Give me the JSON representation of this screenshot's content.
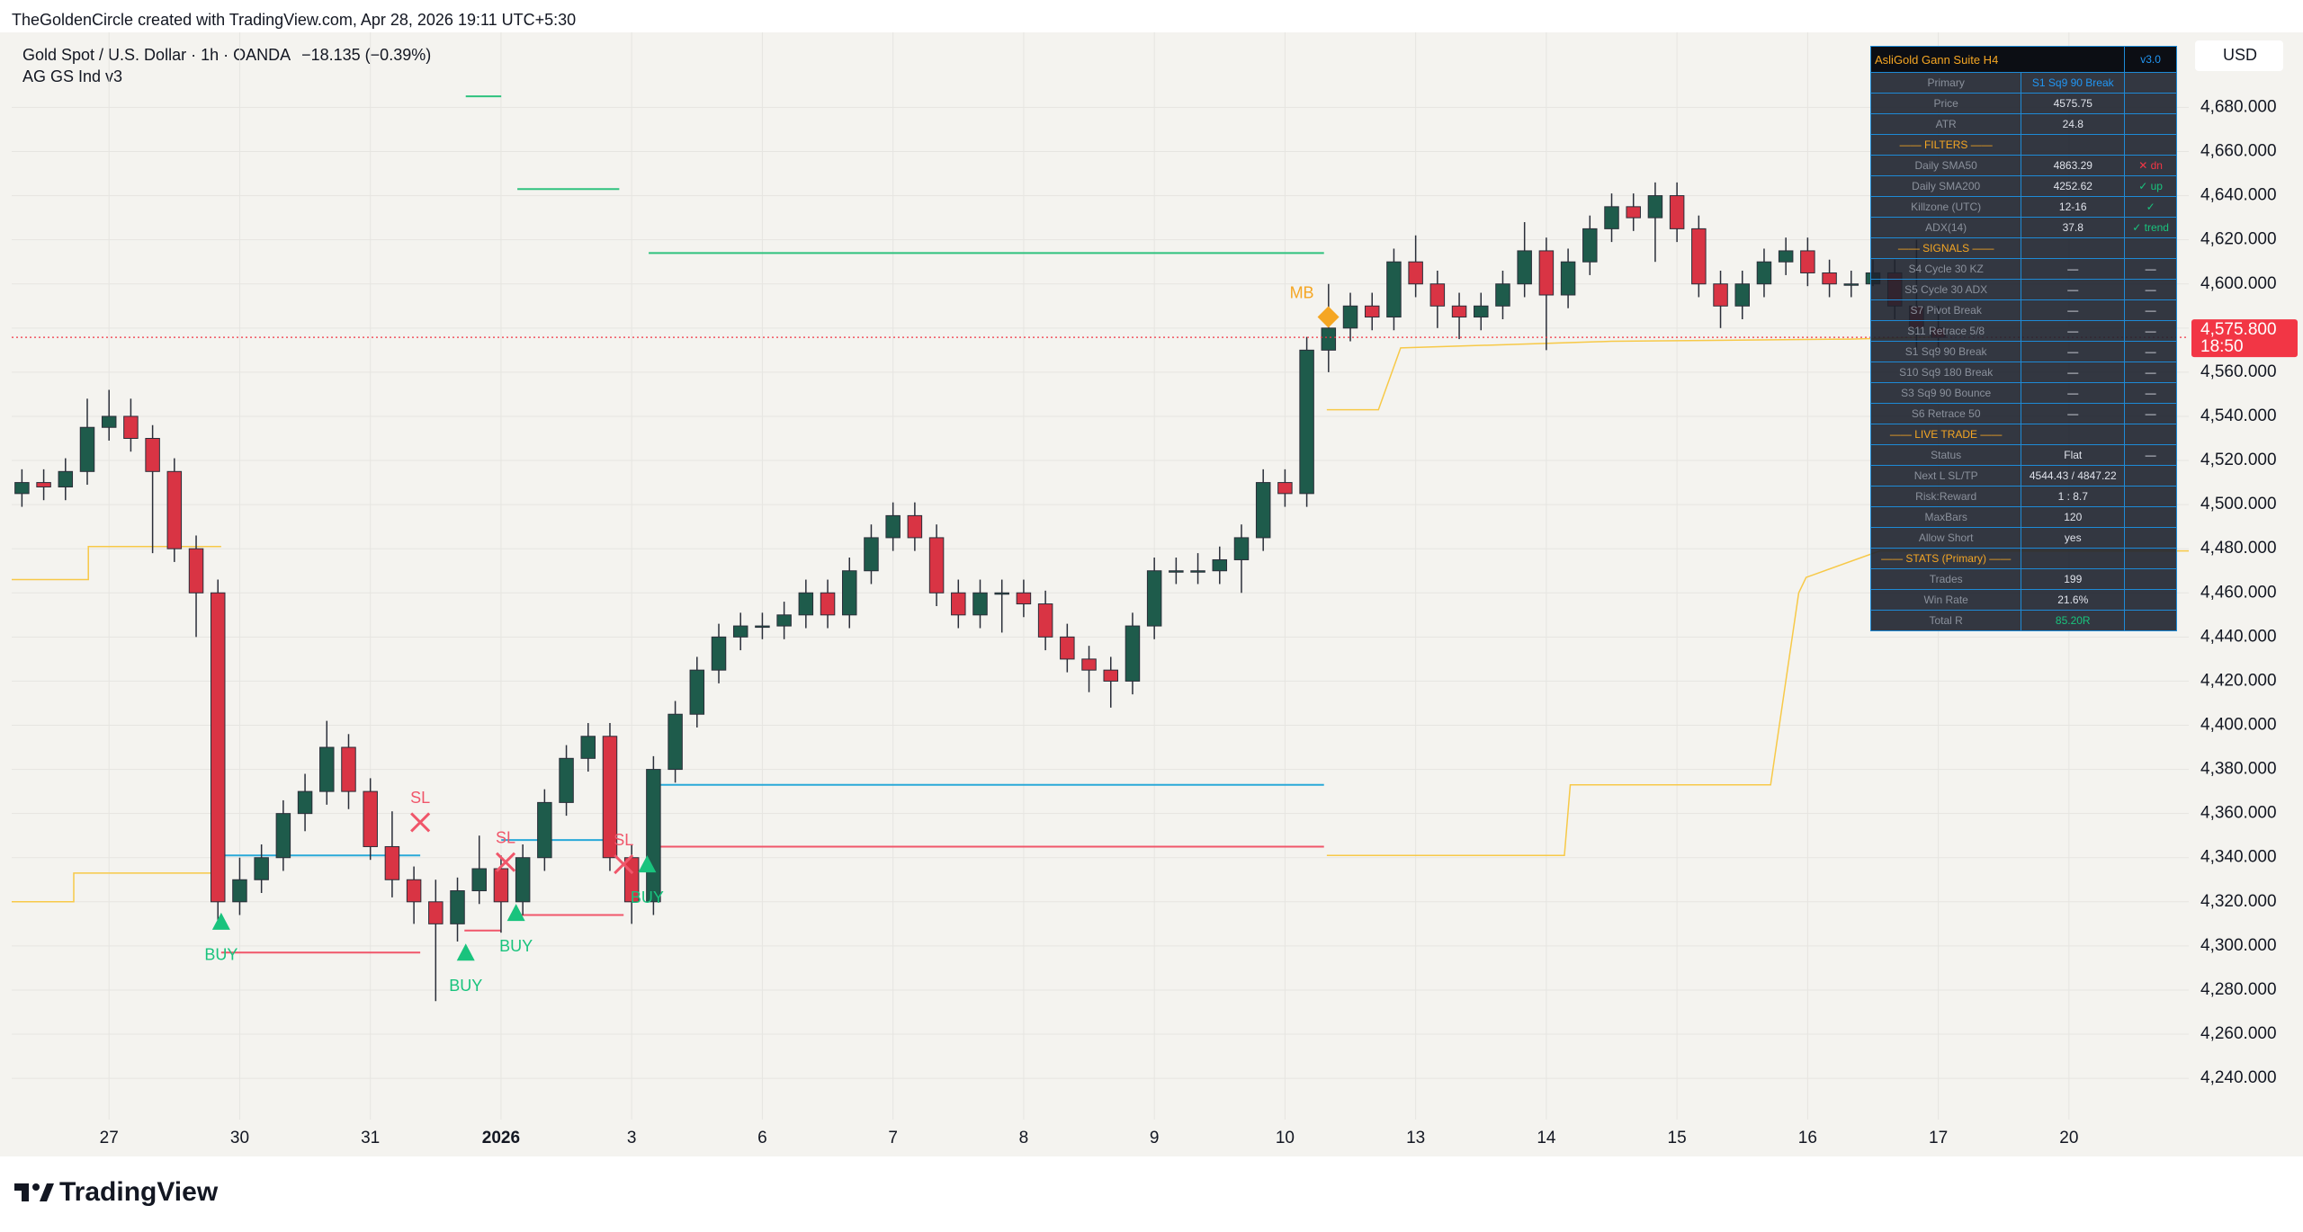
{
  "header": {
    "attribution": "TheGoldenCircle created with TradingView.com, Apr 28, 2026 19:11 UTC+5:30",
    "symbol": "Gold Spot / U.S. Dollar · 1h · OANDA",
    "change": "−18.135 (−0.39%)",
    "indicator": "AG GS Ind v3",
    "currency": "USD",
    "brand": "TradingView"
  },
  "chart_data": {
    "type": "candlestick",
    "up_color": "#1e5b4b",
    "down_color": "#d93444",
    "grid": true,
    "x": [
      -4,
      -3,
      -2,
      -1,
      0,
      1,
      2,
      3,
      4,
      5,
      6,
      7,
      8,
      9,
      10,
      11,
      12,
      13,
      14,
      15,
      16,
      17,
      18,
      19,
      20,
      21,
      22,
      23,
      24,
      25,
      26,
      27,
      28,
      29,
      30,
      31,
      32,
      33,
      34,
      35,
      36,
      37,
      38,
      39,
      40,
      41,
      42,
      43,
      44,
      45,
      46,
      47,
      48,
      49,
      50,
      51,
      52,
      53,
      54,
      55,
      56,
      57,
      58,
      59,
      60,
      61,
      62,
      63,
      64,
      65,
      66,
      67,
      68,
      69,
      70,
      71,
      72,
      73,
      74,
      75,
      76,
      77,
      78,
      79,
      80,
      81,
      82,
      83,
      84
    ],
    "open": [
      4505,
      4510,
      4508,
      4515,
      4535,
      4540,
      4530,
      4515,
      4480,
      4460,
      4320,
      4330,
      4340,
      4360,
      4370,
      4390,
      4370,
      4345,
      4330,
      4320,
      4310,
      4325,
      4335,
      4320,
      4340,
      4365,
      4385,
      4395,
      4340,
      4320,
      4380,
      4405,
      4425,
      4440,
      4445,
      4445,
      4450,
      4460,
      4450,
      4470,
      4485,
      4495,
      4485,
      4460,
      4450,
      4460,
      4460,
      4455,
      4440,
      4430,
      4425,
      4420,
      4445,
      4470,
      4470,
      4470,
      4475,
      4485,
      4510,
      4505,
      4570,
      4580,
      4590,
      4585,
      4610,
      4600,
      4590,
      4585,
      4590,
      4600,
      4615,
      4595,
      4610,
      4625,
      4635,
      4630,
      4640,
      4625,
      4600,
      4590,
      4600,
      4610,
      4615,
      4605,
      4600,
      4600,
      4605,
      4590,
      4580
    ],
    "high": [
      4516,
      4516,
      4521,
      4548,
      4552,
      4548,
      4536,
      4521,
      4486,
      4466,
      4340,
      4346,
      4366,
      4378,
      4402,
      4396,
      4376,
      4361,
      4336,
      4330,
      4331,
      4350,
      4341,
      4346,
      4371,
      4391,
      4401,
      4401,
      4346,
      4386,
      4411,
      4431,
      4446,
      4451,
      4451,
      4456,
      4466,
      4466,
      4476,
      4491,
      4501,
      4501,
      4491,
      4466,
      4466,
      4466,
      4466,
      4461,
      4446,
      4436,
      4431,
      4451,
      4476,
      4476,
      4478,
      4481,
      4491,
      4516,
      4516,
      4576,
      4600,
      4596,
      4596,
      4616,
      4622,
      4606,
      4596,
      4596,
      4606,
      4628,
      4621,
      4616,
      4631,
      4641,
      4641,
      4646,
      4646,
      4631,
      4606,
      4606,
      4616,
      4621,
      4621,
      4611,
      4606,
      4611,
      4611,
      4620,
      4590
    ],
    "low": [
      4499,
      4502,
      4502,
      4509,
      4529,
      4524,
      4478,
      4474,
      4440,
      4310,
      4314,
      4324,
      4334,
      4352,
      4364,
      4362,
      4339,
      4322,
      4310,
      4275,
      4302,
      4319,
      4306,
      4314,
      4334,
      4359,
      4379,
      4334,
      4310,
      4314,
      4374,
      4399,
      4419,
      4434,
      4439,
      4439,
      4444,
      4444,
      4444,
      4464,
      4479,
      4479,
      4454,
      4444,
      4444,
      4442,
      4449,
      4434,
      4424,
      4415,
      4408,
      4414,
      4439,
      4464,
      4464,
      4464,
      4460,
      4479,
      4499,
      4499,
      4560,
      4574,
      4579,
      4579,
      4594,
      4580,
      4575,
      4579,
      4584,
      4594,
      4570,
      4589,
      4604,
      4619,
      4624,
      4610,
      4619,
      4594,
      4580,
      4584,
      4594,
      4604,
      4599,
      4594,
      4594,
      4599,
      4584,
      4570,
      4568
    ],
    "close": [
      4510,
      4508,
      4515,
      4535,
      4540,
      4530,
      4515,
      4480,
      4460,
      4320,
      4330,
      4340,
      4360,
      4370,
      4390,
      4370,
      4345,
      4330,
      4320,
      4310,
      4325,
      4335,
      4320,
      4340,
      4365,
      4385,
      4395,
      4340,
      4320,
      4380,
      4405,
      4425,
      4440,
      4445,
      4445,
      4450,
      4460,
      4450,
      4470,
      4485,
      4495,
      4485,
      4460,
      4450,
      4460,
      4460,
      4455,
      4440,
      4430,
      4425,
      4420,
      4445,
      4470,
      4470,
      4470,
      4475,
      4485,
      4510,
      4505,
      4570,
      4580,
      4590,
      4585,
      4610,
      4600,
      4590,
      4585,
      4590,
      4600,
      4615,
      4595,
      4610,
      4625,
      4635,
      4630,
      4640,
      4625,
      4600,
      4590,
      4600,
      4610,
      4615,
      4605,
      4600,
      4600,
      4605,
      4590,
      4580,
      4575.8
    ],
    "xlim": [
      -4.47,
      95.5
    ],
    "xticks": [
      {
        "value": 0,
        "label": "27"
      },
      {
        "value": 6,
        "label": "30"
      },
      {
        "value": 12,
        "label": "31"
      },
      {
        "value": 18,
        "label": "2026",
        "bold": true
      },
      {
        "value": 24,
        "label": "3"
      },
      {
        "value": 30,
        "label": "6"
      },
      {
        "value": 36,
        "label": "7"
      },
      {
        "value": 42,
        "label": "8"
      },
      {
        "value": 48,
        "label": "9"
      },
      {
        "value": 54,
        "label": "10"
      },
      {
        "value": 60,
        "label": "13"
      },
      {
        "value": 66,
        "label": "14"
      },
      {
        "value": 72,
        "label": "15"
      },
      {
        "value": 78,
        "label": "16"
      },
      {
        "value": 84,
        "label": "17"
      },
      {
        "value": 90,
        "label": "20"
      }
    ],
    "ylim": [
      4205,
      4714
    ],
    "yticks": [
      {
        "value": 4240,
        "label": "4,240.000"
      },
      {
        "value": 4260,
        "label": "4,260.000"
      },
      {
        "value": 4280,
        "label": "4,280.000"
      },
      {
        "value": 4300,
        "label": "4,300.000"
      },
      {
        "value": 4320,
        "label": "4,320.000"
      },
      {
        "value": 4340,
        "label": "4,340.000"
      },
      {
        "value": 4360,
        "label": "4,360.000"
      },
      {
        "value": 4380,
        "label": "4,380.000"
      },
      {
        "value": 4400,
        "label": "4,400.000"
      },
      {
        "value": 4420,
        "label": "4,420.000"
      },
      {
        "value": 4440,
        "label": "4,440.000"
      },
      {
        "value": 4460,
        "label": "4,460.000"
      },
      {
        "value": 4480,
        "label": "4,480.000"
      },
      {
        "value": 4500,
        "label": "4,500.000"
      },
      {
        "value": 4520,
        "label": "4,520.000"
      },
      {
        "value": 4540,
        "label": "4,540.000"
      },
      {
        "value": 4560,
        "label": "4,560.000"
      },
      {
        "value": 4580,
        "label": "4,580.000"
      },
      {
        "value": 4600,
        "label": "4,600.000"
      },
      {
        "value": 4620,
        "label": "4,620.000"
      },
      {
        "value": 4640,
        "label": "4,640.000"
      },
      {
        "value": 4660,
        "label": "4,660.000"
      },
      {
        "value": 4680,
        "label": "4,680.000"
      }
    ],
    "last_price": {
      "value": 4575.8,
      "label": "4,575.800"
    },
    "countdown": "18:50",
    "last_color": "#f23645",
    "series": [
      {
        "color": "#f7c948",
        "x": [
          -4.47,
          -0.95,
          -0.95,
          5.15,
          30,
          55.92,
          58.29,
          59.31,
          68.99,
          79.96,
          84
        ],
        "values": [
          4466,
          4466,
          4481,
          4481,
          null,
          4543,
          4543,
          4571,
          4574,
          4575,
          4576
        ]
      },
      {
        "color": "#f7c948",
        "x": [
          -4.47,
          -1.62,
          -1.62,
          5.15,
          30,
          55.92,
          66.83,
          67.1,
          76.3,
          77.59,
          77.93,
          81.31,
          95.5
        ],
        "values": [
          4320,
          4320,
          4333,
          4333,
          null,
          4341,
          4341,
          4373,
          4373,
          4460,
          4467,
          4479,
          4479
        ]
      }
    ],
    "levels": [
      {
        "color": "#2ec27e",
        "x": [
          16.38,
          18.01
        ],
        "y": 4685
      },
      {
        "color": "#2ec27e",
        "x": [
          18.75,
          23.43
        ],
        "y": 4643
      },
      {
        "color": "#2ec27e",
        "x": [
          24.78,
          55.79
        ],
        "y": 4614
      },
      {
        "color": "#29a9d8",
        "x": [
          5.15,
          14.29
        ],
        "y": 4341
      },
      {
        "color": "#29a9d8",
        "x": [
          18.01,
          22.75
        ],
        "y": 4348
      },
      {
        "color": "#29a9d8",
        "x": [
          24.78,
          55.79
        ],
        "y": 4373
      },
      {
        "color": "#f0566a",
        "x": [
          5.15,
          14.29
        ],
        "y": 4297
      },
      {
        "color": "#f0566a",
        "x": [
          16.32,
          18.01
        ],
        "y": 4307
      },
      {
        "color": "#f0566a",
        "x": [
          18.69,
          23.63
        ],
        "y": 4314
      },
      {
        "color": "#f0566a",
        "x": [
          24.78,
          55.79
        ],
        "y": 4345
      }
    ],
    "signals": [
      {
        "marker": "triangle",
        "color": "#19c37d",
        "x": 5.15,
        "y": 4311,
        "label": "BUY",
        "label_pos": "below"
      },
      {
        "marker": "triangle",
        "color": "#19c37d",
        "x": 16.38,
        "y": 4297,
        "label": "BUY",
        "label_pos": "below"
      },
      {
        "marker": "triangle",
        "color": "#19c37d",
        "x": 18.69,
        "y": 4315,
        "label": "BUY",
        "label_pos": "below"
      },
      {
        "marker": "triangle",
        "color": "#19c37d",
        "x": 24.71,
        "y": 4337,
        "label": "BUY",
        "label_pos": "below"
      },
      {
        "marker": "cross",
        "color": "#f0566a",
        "x": 14.29,
        "y": 4356,
        "label": "SL",
        "label_pos": "above"
      },
      {
        "marker": "cross",
        "color": "#f0566a",
        "x": 18.21,
        "y": 4338,
        "label": "SL",
        "label_pos": "above"
      },
      {
        "marker": "cross",
        "color": "#f0566a",
        "x": 23.63,
        "y": 4337,
        "label": "SL",
        "label_pos": "above"
      },
      {
        "marker": "diamond",
        "color": "#f5a623",
        "x": 55.99,
        "y": 4585,
        "label": "MB",
        "label_pos": "left"
      }
    ]
  },
  "table": {
    "title": "AsliGold Gann Suite H4",
    "version": "v3.0",
    "rows": [
      {
        "cells": [
          "Primary",
          "S1 Sq9 90 Break"
        ],
        "colors": [
          "#8b919c",
          "#2196f3"
        ]
      },
      {
        "cells": [
          "Price",
          "4575.75"
        ]
      },
      {
        "cells": [
          "ATR",
          "24.8"
        ]
      },
      {
        "cells": [
          "—— FILTERS ——"
        ],
        "colors": [
          "#f5a623"
        ]
      },
      {
        "cells": [
          "Daily SMA50",
          "4863.29",
          "✕ dn"
        ],
        "colors": [
          "#8b919c",
          "#e0e3eb",
          "#f23645"
        ]
      },
      {
        "cells": [
          "Daily SMA200",
          "4252.62",
          "✓ up"
        ],
        "colors": [
          "#8b919c",
          "#e0e3eb",
          "#19c37d"
        ]
      },
      {
        "cells": [
          "Killzone (UTC)",
          "12-16",
          "✓"
        ],
        "colors": [
          "#8b919c",
          "#e0e3eb",
          "#19c37d"
        ]
      },
      {
        "cells": [
          "ADX(14)",
          "37.8",
          "✓ trend"
        ],
        "colors": [
          "#8b919c",
          "#e0e3eb",
          "#19c37d"
        ]
      },
      {
        "cells": [
          "—— SIGNALS ——"
        ],
        "colors": [
          "#f5a623"
        ]
      },
      {
        "cells": [
          "S4 Cycle 30 KZ",
          "—",
          "—"
        ]
      },
      {
        "cells": [
          "S5 Cycle 30 ADX",
          "—",
          "—"
        ]
      },
      {
        "cells": [
          "S7 Pivot Break",
          "—",
          "—"
        ]
      },
      {
        "cells": [
          "S11 Retrace 5/8",
          "—",
          "—"
        ]
      },
      {
        "cells": [
          "S1 Sq9 90 Break",
          "—",
          "—"
        ]
      },
      {
        "cells": [
          "S10 Sq9 180 Break",
          "—",
          "—"
        ]
      },
      {
        "cells": [
          "S3 Sq9 90 Bounce",
          "—",
          "—"
        ]
      },
      {
        "cells": [
          "S6 Retrace 50",
          "—",
          "—"
        ]
      },
      {
        "cells": [
          "—— LIVE TRADE ——"
        ],
        "colors": [
          "#f5a623"
        ]
      },
      {
        "cells": [
          "Status",
          "Flat",
          "—"
        ]
      },
      {
        "cells": [
          "Next L SL/TP",
          "4544.43 / 4847.22"
        ]
      },
      {
        "cells": [
          "Risk:Reward",
          "1 : 8.7"
        ]
      },
      {
        "cells": [
          "MaxBars",
          "120"
        ]
      },
      {
        "cells": [
          "Allow Short",
          "yes"
        ]
      },
      {
        "cells": [
          "—— STATS (Primary) ——"
        ],
        "colors": [
          "#f5a623"
        ]
      },
      {
        "cells": [
          "Trades",
          "199"
        ]
      },
      {
        "cells": [
          "Win Rate",
          "21.6%"
        ]
      },
      {
        "cells": [
          "Total R",
          "85.20R"
        ],
        "colors": [
          "#8b919c",
          "#19c37d"
        ]
      }
    ]
  }
}
